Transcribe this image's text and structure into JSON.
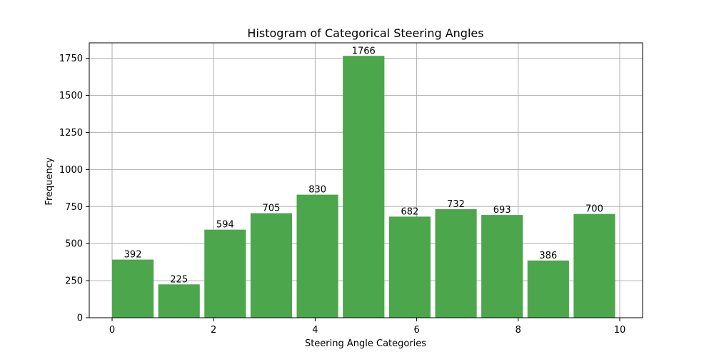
{
  "chart_data": {
    "type": "bar",
    "title": "Histogram of Categorical Steering Angles",
    "xlabel": "Steering Angle Categories",
    "ylabel": "Frequency",
    "bins": [
      {
        "start": 0.0,
        "end": 0.909,
        "value": 392
      },
      {
        "start": 0.909,
        "end": 1.818,
        "value": 225
      },
      {
        "start": 1.818,
        "end": 2.727,
        "value": 594
      },
      {
        "start": 2.727,
        "end": 3.636,
        "value": 705
      },
      {
        "start": 3.636,
        "end": 4.545,
        "value": 830
      },
      {
        "start": 4.545,
        "end": 5.455,
        "value": 1766
      },
      {
        "start": 5.455,
        "end": 6.364,
        "value": 682
      },
      {
        "start": 6.364,
        "end": 7.273,
        "value": 732
      },
      {
        "start": 7.273,
        "end": 8.182,
        "value": 693
      },
      {
        "start": 8.182,
        "end": 9.091,
        "value": 386
      },
      {
        "start": 9.091,
        "end": 10.0,
        "value": 700
      }
    ],
    "xlim": [
      -0.45,
      10.45
    ],
    "ylim": [
      0,
      1854
    ],
    "xticks": [
      0,
      2,
      4,
      6,
      8,
      10
    ],
    "yticks": [
      0,
      250,
      500,
      750,
      1000,
      1250,
      1500,
      1750
    ],
    "grid": true,
    "bar_color": "#4ca64c"
  }
}
